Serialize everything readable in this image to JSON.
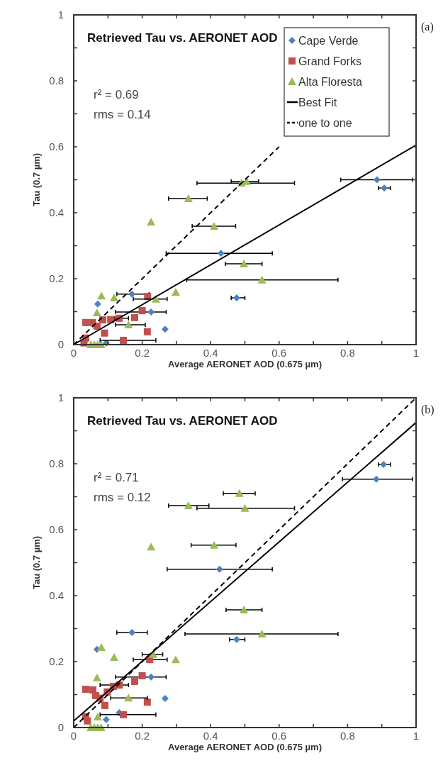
{
  "chart_data": [
    {
      "type": "scatter",
      "title": "Retrieved Tau vs. AERONET AOD",
      "xlabel": "Average AERONET AOD (0.675 µm)",
      "ylabel": "Tau (0.7 µm)",
      "annotations": [
        "r² = 0.69",
        "rms = 0.14",
        "(a)"
      ],
      "xlim": [
        0,
        1
      ],
      "ylim": [
        0,
        1
      ],
      "xticks": [
        0,
        {
          "value": 0.1,
          "label": null
        },
        0.2,
        {
          "value": 0.3,
          "label": null
        },
        0.4,
        {
          "value": 0.5,
          "label": null
        },
        0.6,
        {
          "value": 0.7,
          "label": null
        },
        0.8,
        {
          "value": 0.9,
          "label": null
        },
        1
      ],
      "yticks": [
        0,
        {
          "value": 0.1,
          "label": null
        },
        0.2,
        {
          "value": 0.3,
          "label": null
        },
        0.4,
        {
          "value": 0.5,
          "label": null
        },
        0.6,
        {
          "value": 0.7,
          "label": null
        },
        0.8,
        {
          "value": 0.9,
          "label": null
        },
        1
      ],
      "grid": false,
      "legend": "top right",
      "series": [
        {
          "name": "Cape Verde",
          "color": "#4f81bd",
          "marker": "diamond",
          "x": [
            0.886,
            0.907,
            0.43,
            0.476,
            0.17,
            0.226,
            0.267,
            0.07,
            0.095
          ],
          "values": [
            0.5,
            0.475,
            0.277,
            0.142,
            0.153,
            0.099,
            0.047,
            0.123,
            0.005
          ],
          "xerrors": [
            [
              0.78,
              0.99
            ],
            [
              0.89,
              0.925
            ],
            [
              0.27,
              0.58
            ],
            [
              0.46,
              0.5
            ],
            [
              0.126,
              0.22
            ],
            [
              0.122,
              0.27
            ],
            null,
            null,
            null
          ]
        },
        {
          "name": "Grand Forks",
          "color": "#c0504d",
          "marker": "square",
          "x": [
            0.035,
            0.055,
            0.068,
            0.085,
            0.09,
            0.108,
            0.133,
            0.178,
            0.2,
            0.216,
            0.215,
            0.145,
            0.035,
            0.03
          ],
          "values": [
            0.067,
            0.067,
            0.056,
            0.075,
            0.035,
            0.076,
            0.08,
            0.082,
            0.103,
            0.146,
            0.039,
            0.013,
            0.02,
            0.005
          ],
          "xerrors": [
            null,
            null,
            null,
            null,
            null,
            null,
            [
              0.12,
              0.16
            ],
            null,
            null,
            null,
            null,
            [
              0.077,
              0.24
            ],
            null,
            null
          ]
        },
        {
          "name": "Alta Floresta",
          "color": "#9bbb59",
          "marker": "triangle",
          "x": [
            0.49,
            0.505,
            0.335,
            0.226,
            0.41,
            0.497,
            0.55,
            0.298,
            0.24,
            0.081,
            0.118,
            0.068,
            0.16,
            0.05,
            0.06,
            0.07,
            0.08
          ],
          "values": [
            0.49,
            0.495,
            0.443,
            0.372,
            0.359,
            0.245,
            0.196,
            0.159,
            0.138,
            0.148,
            0.142,
            0.097,
            0.06,
            0,
            0,
            0,
            0
          ],
          "xerrors": [
            [
              0.36,
              0.645
            ],
            [
              0.46,
              0.54
            ],
            [
              0.277,
              0.39
            ],
            null,
            [
              0.346,
              0.473
            ],
            [
              0.443,
              0.55
            ],
            [
              0.33,
              0.772
            ],
            null,
            [
              0.174,
              0.273
            ],
            null,
            null,
            null,
            [
              0.122,
              0.209
            ],
            null,
            null,
            null,
            null
          ]
        },
        {
          "name": "Best Fit",
          "type": "line",
          "color": "#000000",
          "marker": "none",
          "line_style": "solid",
          "x": [
            0,
            1
          ],
          "values": [
            0,
            0.605
          ]
        },
        {
          "name": "one to one",
          "type": "line",
          "color": "#000000",
          "marker": "none",
          "line_style": "dashed",
          "x": [
            0,
            0.6
          ],
          "values": [
            0,
            0.6
          ]
        }
      ]
    },
    {
      "type": "scatter",
      "title": "Retrieved Tau vs. AERONET AOD",
      "xlabel": "Average AERONET AOD (0.675 µm)",
      "ylabel": "Tau (0.7 µm)",
      "annotations": [
        "r² = 0.71",
        "rms = 0.12",
        "(b)"
      ],
      "xlim": [
        0,
        1
      ],
      "ylim": [
        0,
        1
      ],
      "xticks": [
        0,
        {
          "value": 0.1,
          "label": null
        },
        0.2,
        {
          "value": 0.3,
          "label": null
        },
        0.4,
        {
          "value": 0.5,
          "label": null
        },
        0.6,
        {
          "value": 0.7,
          "label": null
        },
        0.8,
        {
          "value": 0.9,
          "label": null
        },
        1
      ],
      "yticks": [
        0,
        {
          "value": 0.1,
          "label": null
        },
        0.2,
        {
          "value": 0.3,
          "label": null
        },
        0.4,
        {
          "value": 0.5,
          "label": null
        },
        0.6,
        {
          "value": 0.7,
          "label": null
        },
        0.8,
        {
          "value": 0.9,
          "label": null
        },
        1
      ],
      "grid": false,
      "legend": false,
      "series": [
        {
          "color": "#4f81bd",
          "marker": "diamond",
          "x": [
            0.905,
            0.884,
            0.426,
            0.476,
            0.17,
            0.226,
            0.267,
            0.068,
            0.095,
            0.133
          ],
          "values": [
            0.798,
            0.753,
            0.48,
            0.267,
            0.288,
            0.153,
            0.088,
            0.237,
            0.024,
            0.045
          ],
          "xerrors": [
            [
              0.89,
              0.925
            ],
            [
              0.785,
              0.99
            ],
            [
              0.273,
              0.58
            ],
            [
              0.455,
              0.5
            ],
            [
              0.126,
              0.215
            ],
            [
              0.122,
              0.27
            ],
            null,
            null,
            null,
            null
          ]
        },
        {
          "color": "#c0504d",
          "marker": "square",
          "x": [
            0.035,
            0.056,
            0.064,
            0.077,
            0.091,
            0.098,
            0.116,
            0.133,
            0.178,
            0.2,
            0.222,
            0.215,
            0.145,
            0.035,
            0.04
          ],
          "values": [
            0.116,
            0.114,
            0.097,
            0.089,
            0.067,
            0.108,
            0.125,
            0.129,
            0.14,
            0.157,
            0.206,
            0.077,
            0.039,
            0.033,
            0.02
          ],
          "xerrors": [
            null,
            null,
            null,
            null,
            null,
            null,
            null,
            [
              0.077,
              0.16
            ],
            null,
            null,
            [
              0.174,
              0.273
            ],
            null,
            [
              0.077,
              0.24
            ],
            null,
            null
          ]
        },
        {
          "color": "#9bbb59",
          "marker": "triangle",
          "x": [
            0.484,
            0.335,
            0.5,
            0.41,
            0.497,
            0.55,
            0.226,
            0.298,
            0.232,
            0.081,
            0.118,
            0.068,
            0.16,
            0.07,
            0.05,
            0.06,
            0.07,
            0.08
          ],
          "values": [
            0.71,
            0.673,
            0.665,
            0.553,
            0.357,
            0.284,
            0.548,
            0.206,
            0.222,
            0.243,
            0.213,
            0.151,
            0.09,
            0.032,
            0,
            0,
            0,
            0
          ],
          "xerrors": [
            [
              0.437,
              0.53
            ],
            [
              0.277,
              0.395
            ],
            [
              0.36,
              0.645
            ],
            [
              0.343,
              0.474
            ],
            [
              0.445,
              0.55
            ],
            [
              0.325,
              0.772
            ],
            null,
            null,
            [
              0.2,
              0.26
            ],
            null,
            null,
            null,
            [
              0.108,
              0.215
            ],
            null,
            null,
            null,
            null,
            null
          ]
        },
        {
          "type": "line",
          "color": "#000000",
          "marker": "none",
          "line_style": "solid",
          "x": [
            0,
            1
          ],
          "values": [
            0.02,
            0.925
          ]
        },
        {
          "type": "line",
          "color": "#000000",
          "marker": "none",
          "line_style": "dashed",
          "x": [
            0,
            1
          ],
          "values": [
            0,
            1
          ]
        }
      ]
    }
  ]
}
